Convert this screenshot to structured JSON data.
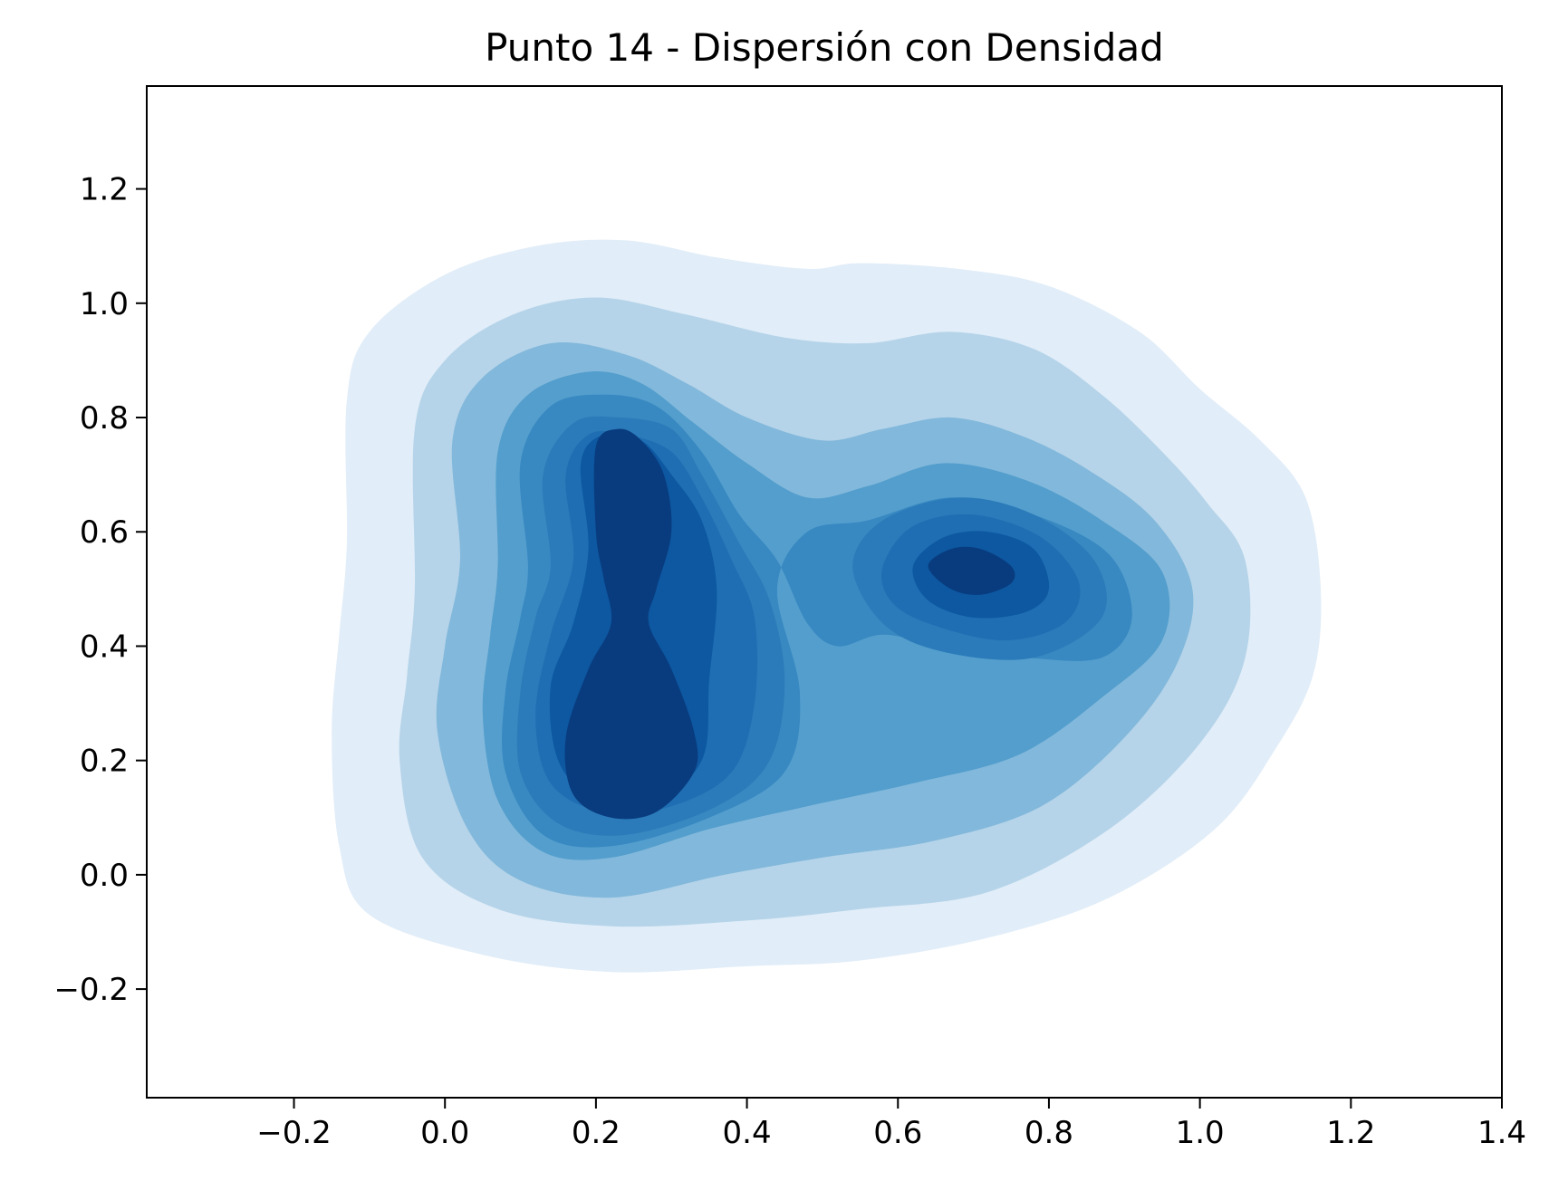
{
  "chart_data": {
    "type": "kde_contour",
    "title": "Punto 14 - Dispersión con Densidad",
    "xlabel": "",
    "ylabel": "",
    "xlim": [
      -0.395,
      1.4
    ],
    "ylim": [
      -0.39,
      1.38
    ],
    "xticks": [
      -0.2,
      0.0,
      0.2,
      0.4,
      0.6,
      0.8,
      1.0,
      1.2,
      1.4
    ],
    "xtick_labels": [
      "−0.2",
      "0.0",
      "0.2",
      "0.4",
      "0.6",
      "0.8",
      "1.0",
      "1.2",
      "1.4"
    ],
    "yticks": [
      -0.2,
      0.0,
      0.2,
      0.4,
      0.6,
      0.8,
      1.0,
      1.2
    ],
    "ytick_labels": [
      "−0.2",
      "0.0",
      "0.2",
      "0.4",
      "0.6",
      "0.8",
      "1.0",
      "1.2"
    ],
    "grid": false,
    "colormap": "Blues",
    "level_colors": [
      "#e1edf8",
      "#b5d4e9",
      "#82b8db",
      "#539ecd",
      "#3888c1",
      "#2b7bba",
      "#1f6eb3",
      "#0d58a1",
      "#093c7f"
    ],
    "density_modes": [
      {
        "x": 0.23,
        "y": 0.2
      },
      {
        "x": 0.22,
        "y": 0.65
      },
      {
        "x": 0.69,
        "y": 0.53
      }
    ]
  }
}
